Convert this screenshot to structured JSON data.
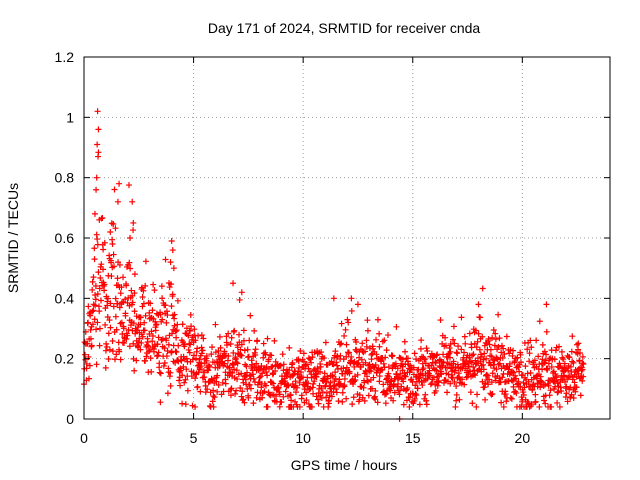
{
  "chart_data": {
    "type": "scatter",
    "title": "Day 171 of 2024, SRMTID for receiver cnda",
    "xlabel": "GPS time / hours",
    "ylabel": "SRMTID / TECUs",
    "xlim": [
      0,
      24
    ],
    "ylim": [
      0,
      1.2
    ],
    "xticks": [
      0,
      5,
      10,
      15,
      20
    ],
    "yticks": [
      0,
      0.2,
      0.4,
      0.6,
      0.8,
      1.0,
      1.2
    ],
    "xtick_labels": [
      "0",
      "5",
      "10",
      "15",
      "20"
    ],
    "ytick_labels": [
      "0",
      "0.2",
      "0.4",
      "0.6",
      "0.8",
      "1",
      "1.2"
    ],
    "grid": true,
    "marker": "+",
    "color": "#ff0000",
    "series": [
      {
        "name": "SRMTID",
        "envelope": {
          "x": [
            0,
            0.3,
            0.6,
            0.9,
            1.2,
            1.6,
            2.0,
            2.5,
            3.0,
            3.5,
            4.0,
            4.5,
            5.0,
            6.0,
            7.0,
            8.0,
            9.0,
            10.0,
            11.0,
            12.0,
            13.0,
            14.0,
            15.0,
            16.0,
            17.0,
            18.0,
            19.0,
            20.0,
            21.0,
            22.0,
            22.8
          ],
          "y": [
            0.2,
            0.3,
            0.45,
            0.42,
            0.4,
            0.38,
            0.34,
            0.3,
            0.28,
            0.25,
            0.26,
            0.22,
            0.19,
            0.17,
            0.19,
            0.14,
            0.13,
            0.12,
            0.13,
            0.17,
            0.17,
            0.14,
            0.13,
            0.15,
            0.16,
            0.18,
            0.17,
            0.14,
            0.15,
            0.14,
            0.14
          ]
        },
        "spikes": [
          {
            "x": 0.62,
            "y": 1.02
          },
          {
            "x": 0.66,
            "y": 0.96
          },
          {
            "x": 0.6,
            "y": 0.91
          },
          {
            "x": 0.64,
            "y": 0.87
          },
          {
            "x": 0.58,
            "y": 0.8
          },
          {
            "x": 0.55,
            "y": 0.76
          },
          {
            "x": 0.5,
            "y": 0.68
          },
          {
            "x": 0.7,
            "y": 0.66
          },
          {
            "x": 1.6,
            "y": 0.78
          },
          {
            "x": 1.55,
            "y": 0.72
          },
          {
            "x": 2.2,
            "y": 0.72
          },
          {
            "x": 2.25,
            "y": 0.65
          },
          {
            "x": 2.1,
            "y": 0.6
          },
          {
            "x": 1.2,
            "y": 0.62
          },
          {
            "x": 1.3,
            "y": 0.58
          },
          {
            "x": 4.0,
            "y": 0.59
          },
          {
            "x": 4.05,
            "y": 0.56
          },
          {
            "x": 3.95,
            "y": 0.52
          },
          {
            "x": 4.1,
            "y": 0.5
          },
          {
            "x": 6.8,
            "y": 0.45
          },
          {
            "x": 7.2,
            "y": 0.42
          },
          {
            "x": 11.4,
            "y": 0.4
          },
          {
            "x": 12.2,
            "y": 0.4
          },
          {
            "x": 12.5,
            "y": 0.38
          },
          {
            "x": 18.0,
            "y": 0.38
          },
          {
            "x": 21.1,
            "y": 0.38
          },
          {
            "x": 14.4,
            "y": 0.0
          }
        ]
      }
    ]
  }
}
